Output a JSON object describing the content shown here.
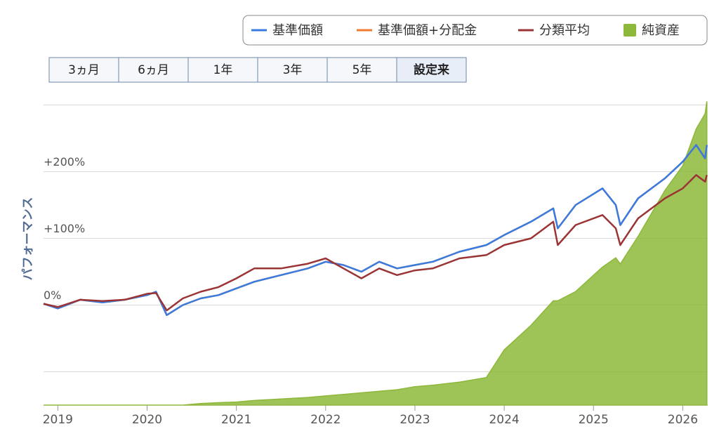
{
  "chart_data": {
    "type": "line",
    "legend": "top-right",
    "range_buttons": [
      "3ヵ月",
      "6ヵ月",
      "1年",
      "3年",
      "5年",
      "設定来"
    ],
    "selected_range": 5,
    "ylabel": "パフォーマンス",
    "x": [
      2018.84,
      2019.0,
      2019.25,
      2019.5,
      2019.75,
      2020.0,
      2020.1,
      2020.22,
      2020.4,
      2020.6,
      2020.8,
      2021.0,
      2021.2,
      2021.5,
      2021.8,
      2022.0,
      2022.2,
      2022.4,
      2022.6,
      2022.8,
      2023.0,
      2023.2,
      2023.5,
      2023.8,
      2024.0,
      2024.3,
      2024.55,
      2024.6,
      2024.8,
      2025.1,
      2025.25,
      2025.3,
      2025.5,
      2025.8,
      2026.0,
      2026.15,
      2026.25,
      2026.27
    ],
    "xlim": [
      2018.84,
      2026.28
    ],
    "xticks": [
      2019,
      2020,
      2021,
      2022,
      2023,
      2024,
      2025,
      2026
    ],
    "ylim": [
      -150,
      310
    ],
    "yticks": [
      {
        "value": 0,
        "label": "0%"
      },
      {
        "value": 100,
        "label": "+100%"
      },
      {
        "value": 200,
        "label": "+200%"
      }
    ],
    "ygrid": [
      -100,
      0,
      100,
      200,
      300
    ],
    "y2lim": [
      0,
      100
    ],
    "series": [
      {
        "name": "基準価額+分配金",
        "color": "#f07b2e",
        "values": [
          2,
          -5,
          8,
          4,
          8,
          15,
          20,
          -15,
          0,
          10,
          15,
          25,
          35,
          45,
          55,
          65,
          60,
          50,
          65,
          55,
          60,
          65,
          80,
          90,
          105,
          125,
          145,
          115,
          150,
          175,
          150,
          120,
          160,
          190,
          215,
          240,
          220,
          240
        ]
      },
      {
        "name": "基準価額",
        "color": "#3a7be0",
        "values": [
          2,
          -5,
          8,
          4,
          8,
          15,
          20,
          -15,
          0,
          10,
          15,
          25,
          35,
          45,
          55,
          65,
          60,
          50,
          65,
          55,
          60,
          65,
          80,
          90,
          105,
          125,
          145,
          115,
          150,
          175,
          150,
          120,
          160,
          190,
          215,
          240,
          220,
          240
        ]
      },
      {
        "name": "分類平均",
        "color": "#9b3535",
        "values": [
          2,
          -3,
          8,
          6,
          8,
          17,
          18,
          -8,
          10,
          20,
          27,
          40,
          55,
          55,
          62,
          70,
          55,
          40,
          55,
          45,
          52,
          55,
          70,
          75,
          90,
          100,
          125,
          90,
          120,
          135,
          115,
          90,
          130,
          160,
          175,
          195,
          185,
          195
        ]
      },
      {
        "name": "純資産",
        "color": "#8db83a",
        "type": "area",
        "axis": "y2",
        "values": [
          0,
          0,
          0,
          0,
          0,
          0,
          0,
          0,
          0,
          0.5,
          0.8,
          1,
          1.5,
          2,
          2.5,
          3,
          3.5,
          4,
          4.5,
          5,
          6,
          6.5,
          7.5,
          9,
          18,
          26,
          34,
          34,
          37,
          45,
          48,
          46,
          55,
          70,
          78,
          90,
          95,
          99
        ]
      }
    ]
  }
}
